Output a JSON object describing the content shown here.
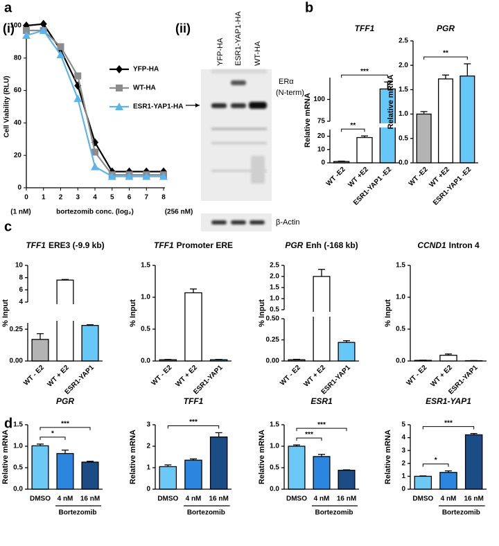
{
  "panel_labels": {
    "a": "a",
    "a_i": "(i)",
    "a_ii": "(ii)",
    "b": "b",
    "c": "c",
    "d": "d"
  },
  "blot": {
    "lanes": [
      "YFP-HA",
      "ESR1-YAP1-HA",
      "WT-HA"
    ],
    "target": [
      "ERα",
      "(N-term)"
    ],
    "loading": "β-Actin"
  },
  "chart_data": [
    {
      "type": "line",
      "ylabel": "Cell Viability (RLU)",
      "xlabel": "bortezomib conc. (log₂)",
      "x_min_label": "(1 nM)",
      "x_max_label": "(256 nM)",
      "x": [
        0,
        1,
        2,
        3,
        4,
        5,
        6,
        7,
        8
      ],
      "xlim": [
        0,
        8
      ],
      "xticks": [
        0,
        1,
        2,
        3,
        4,
        5,
        6,
        7,
        8
      ],
      "ylim": [
        0,
        100
      ],
      "yticks": [
        0,
        20,
        40,
        60,
        80,
        100
      ],
      "series": [
        {
          "name": "YFP-HA",
          "color": "#000000",
          "marker": "diamond",
          "values": [
            100,
            101,
            85,
            63,
            28,
            10,
            10,
            10,
            10
          ]
        },
        {
          "name": "WT-HA",
          "color": "#8c8c8c",
          "marker": "square",
          "values": [
            97,
            97,
            87,
            69,
            22,
            8,
            8,
            8,
            8
          ]
        },
        {
          "name": "ESR1-YAP1-HA",
          "color": "#5ab4f0",
          "marker": "triangle",
          "values": [
            94,
            97,
            82,
            55,
            13,
            7,
            7,
            7,
            7
          ]
        }
      ]
    },
    {
      "type": "bar",
      "title": "TFF1",
      "ylabel": "Relative mRNA",
      "categories": [
        "WT -E2",
        "WT +E2",
        "ESR1-YAP1 -E2"
      ],
      "values": [
        1,
        19,
        112
      ],
      "errors": [
        0.3,
        1.2,
        8
      ],
      "colors": [
        "#b3b3b3",
        "#ffffff",
        "#66c8f7"
      ],
      "ylim": [
        0,
        125
      ],
      "ybreak": [
        25,
        75
      ],
      "yticks": [
        0,
        10,
        20
      ],
      "yticks_upper": [
        75,
        100
      ],
      "annotations": [
        {
          "text": "**",
          "from": 0,
          "to": 1
        },
        {
          "text": "***",
          "from": 0,
          "to": 2
        }
      ]
    },
    {
      "type": "bar",
      "title": "PGR",
      "ylabel": "Relative mRNA",
      "categories": [
        "WT -E2",
        "WT +E2",
        "ESR1-YAP1 -E2"
      ],
      "values": [
        1.0,
        1.72,
        1.78
      ],
      "errors": [
        0.05,
        0.08,
        0.25
      ],
      "colors": [
        "#b3b3b3",
        "#ffffff",
        "#66c8f7"
      ],
      "ylim": [
        0,
        2.5
      ],
      "yticks": [
        {
          "value": 0,
          "label": "0.0"
        },
        0.5,
        {
          "value": 1,
          "label": "1.0"
        },
        1.5,
        {
          "value": 2,
          "label": "2.0"
        },
        2.5
      ],
      "annotations": [
        {
          "text": "**",
          "from": 0,
          "to": 2
        }
      ]
    },
    {
      "type": "bar",
      "title": "TFF1",
      "title_suffix": "ERE3 (-9.9 kb)",
      "ylabel": "% Input",
      "categories": [
        "WT - E2",
        "WT + E2",
        "ESR1-YAP1"
      ],
      "values": [
        0.17,
        7.6,
        0.28
      ],
      "errors": [
        0.045,
        0.1,
        0.025
      ],
      "colors": [
        "#b3b3b3",
        "#ffffff",
        "#66c8f7"
      ],
      "ylim": [
        0,
        10
      ],
      "ybreak": [
        0.3,
        4
      ],
      "yticks": [
        {
          "value": 0,
          "label": "0.00"
        },
        0.25
      ],
      "yticks_upper": [
        4,
        6,
        8,
        10
      ]
    },
    {
      "type": "bar",
      "title": "TFF1",
      "title_suffix": "Promoter ERE",
      "ylabel": "% Input",
      "categories": [
        "WT - E2",
        "WT + E2",
        "ESR1-YAP1"
      ],
      "values": [
        0.02,
        1.07,
        0.02
      ],
      "errors": [
        0.005,
        0.06,
        0.005
      ],
      "colors": [
        "#b3b3b3",
        "#ffffff",
        "#66c8f7"
      ],
      "ylim": [
        0,
        1.5
      ],
      "yticks": [
        {
          "value": 0,
          "label": "0.0"
        },
        0.5,
        {
          "value": 1,
          "label": "1.0"
        },
        1.5
      ]
    },
    {
      "type": "bar",
      "title": "PGR",
      "title_suffix": "Enh (-168 kb)",
      "ylabel": "% Input",
      "categories": [
        "WT - E2",
        "WT + E2",
        "ESR1-YAP1"
      ],
      "values": [
        0.015,
        2.0,
        0.22
      ],
      "errors": [
        0.005,
        0.32,
        0.02
      ],
      "colors": [
        "#b3b3b3",
        "#ffffff",
        "#66c8f7"
      ],
      "ylim": [
        0,
        2.5
      ],
      "ybreak": [
        0.5,
        0.5
      ],
      "yticks": [
        {
          "value": 0,
          "label": "0.00"
        },
        0.25,
        {
          "value": 0.5,
          "label": "0.50"
        }
      ],
      "yticks_upper": [
        0.5,
        {
          "value": 1,
          "label": "1.0"
        },
        1.5,
        {
          "value": 2,
          "label": "2.0"
        },
        2.5
      ]
    },
    {
      "type": "bar",
      "title": "CCND1",
      "title_suffix": "Intron 4",
      "ylabel": "% Input",
      "categories": [
        "WT - E2",
        "WT + E2",
        "ESR1-YAP1"
      ],
      "values": [
        0.01,
        0.09,
        0.005
      ],
      "errors": [
        0.003,
        0.02,
        0.002
      ],
      "colors": [
        "#b3b3b3",
        "#ffffff",
        "#66c8f7"
      ],
      "ylim": [
        0,
        1.5
      ],
      "yticks": [
        {
          "value": 0,
          "label": "0.0"
        },
        0.5,
        {
          "value": 1,
          "label": "1.0"
        },
        1.5
      ]
    },
    {
      "type": "bar",
      "title": "PGR",
      "ylabel": "Relative mRNA",
      "categories": [
        "DMSO",
        "4 nM",
        "16 nM"
      ],
      "group_label": "Bortezomib",
      "values": [
        1.01,
        0.83,
        0.63
      ],
      "errors": [
        0.04,
        0.08,
        0.02
      ],
      "colors": [
        "#6cc8f5",
        "#2b86e0",
        "#1c4c86"
      ],
      "ylim": [
        0,
        1.5
      ],
      "yticks": [
        {
          "value": 0,
          "label": "0.0"
        },
        0.5,
        {
          "value": 1,
          "label": "1.0"
        },
        1.5
      ],
      "annotations": [
        {
          "text": "*",
          "from": 0,
          "to": 1
        },
        {
          "text": "***",
          "from": 0,
          "to": 2
        }
      ]
    },
    {
      "type": "bar",
      "title": "TFF1",
      "ylabel": "Relative mRNA",
      "categories": [
        "DMSO",
        "4 nM",
        "16 nM"
      ],
      "group_label": "Bortezomib",
      "values": [
        1.05,
        1.35,
        2.43
      ],
      "errors": [
        0.08,
        0.06,
        0.2
      ],
      "colors": [
        "#6cc8f5",
        "#2b86e0",
        "#1c4c86"
      ],
      "ylim": [
        0,
        3
      ],
      "yticks": [
        0,
        1,
        2,
        3
      ],
      "annotations": [
        {
          "text": "***",
          "from": 0,
          "to": 2
        }
      ]
    },
    {
      "type": "bar",
      "title": "ESR1",
      "ylabel": "Relative mRNA",
      "categories": [
        "DMSO",
        "4 nM",
        "16 nM"
      ],
      "group_label": "Bortezomib",
      "values": [
        1.0,
        0.76,
        0.44
      ],
      "errors": [
        0.03,
        0.05,
        0.01
      ],
      "colors": [
        "#6cc8f5",
        "#2b86e0",
        "#1c4c86"
      ],
      "ylim": [
        0,
        1.5
      ],
      "yticks": [
        {
          "value": 0,
          "label": "0.0"
        },
        0.5,
        {
          "value": 1,
          "label": "1.0"
        },
        1.5
      ],
      "annotations": [
        {
          "text": "***",
          "from": 0,
          "to": 1
        },
        {
          "text": "***",
          "from": 0,
          "to": 2
        }
      ]
    },
    {
      "type": "bar",
      "title": "ESR1-YAP1",
      "ylabel": "Relative mRNA",
      "categories": [
        "DMSO",
        "4 nM",
        "16 nM"
      ],
      "group_label": "Bortezomib",
      "values": [
        1.0,
        1.3,
        4.22
      ],
      "errors": [
        0.03,
        0.12,
        0.1
      ],
      "colors": [
        "#6cc8f5",
        "#2b86e0",
        "#1c4c86"
      ],
      "ylim": [
        0,
        5
      ],
      "yticks": [
        0,
        1,
        2,
        3,
        4,
        5
      ],
      "annotations": [
        {
          "text": "*",
          "from": 0,
          "to": 1
        },
        {
          "text": "***",
          "from": 0,
          "to": 2
        }
      ]
    }
  ]
}
